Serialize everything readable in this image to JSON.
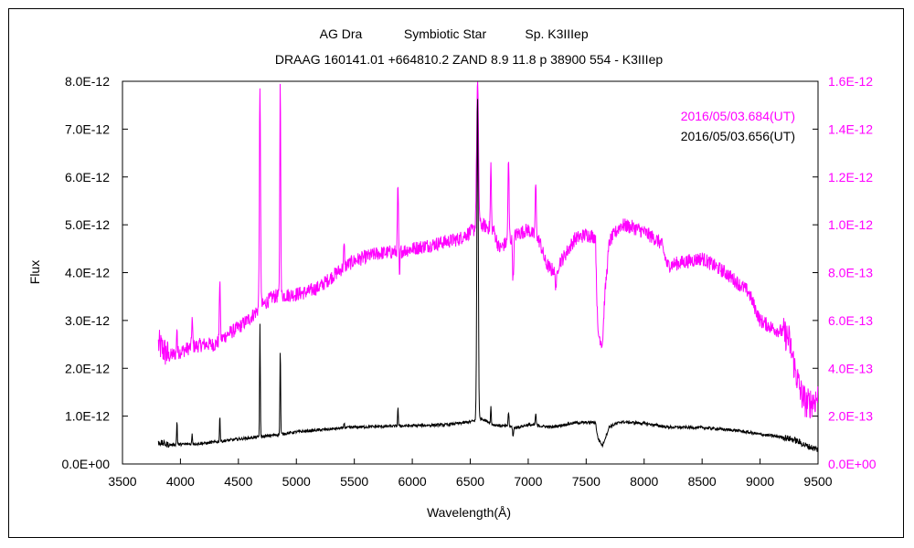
{
  "chart_data": {
    "type": "line",
    "title_line1_parts": [
      "AG Dra",
      "Symbiotic Star",
      "Sp. K3IIIep"
    ],
    "title_line2": "DRAAG 160141.01 +664810.2 ZAND 8.9 11.8 p 38900 554 - K3IIIep",
    "xlabel": "Wavelength(Å)",
    "ylabel": "Flux",
    "xlim": [
      3500,
      9500
    ],
    "ylim_left": [
      0,
      8e-12
    ],
    "ylim_right": [
      0,
      1.6e-12
    ],
    "x_ticks": [
      "3500",
      "4000",
      "4500",
      "5000",
      "5500",
      "6000",
      "6500",
      "7000",
      "7500",
      "8000",
      "8500",
      "9000",
      "9500"
    ],
    "y_left_ticks": [
      "0.0E+00",
      "1.0E-12",
      "2.0E-12",
      "3.0E-12",
      "4.0E-12",
      "5.0E-12",
      "6.0E-12",
      "7.0E-12",
      "8.0E-12"
    ],
    "y_right_ticks": [
      "0.0E+00",
      "2.0E-13",
      "4.0E-13",
      "6.0E-13",
      "8.0E-13",
      "1.0E-12",
      "1.2E-12",
      "1.4E-12",
      "1.6E-12"
    ],
    "grid": false,
    "legend_position": "top-right",
    "series": [
      {
        "name": "2016/05/03.684(UT)",
        "axis": "right",
        "color": "#ff00ff",
        "noise": 0.05,
        "points": [
          [
            3810,
            0.5
          ],
          [
            3900,
            0.45
          ],
          [
            4000,
            0.47
          ],
          [
            4100,
            0.49
          ],
          [
            4200,
            0.5
          ],
          [
            4300,
            0.5
          ],
          [
            4400,
            0.54
          ],
          [
            4500,
            0.57
          ],
          [
            4600,
            0.61
          ],
          [
            4700,
            0.66
          ],
          [
            4800,
            0.7
          ],
          [
            5000,
            0.71
          ],
          [
            5100,
            0.72
          ],
          [
            5200,
            0.74
          ],
          [
            5400,
            0.82
          ],
          [
            5500,
            0.85
          ],
          [
            5700,
            0.88
          ],
          [
            5900,
            0.89
          ],
          [
            6000,
            0.9
          ],
          [
            6200,
            0.92
          ],
          [
            6400,
            0.94
          ],
          [
            6500,
            0.97
          ],
          [
            6600,
            1.0
          ],
          [
            6700,
            0.98
          ],
          [
            6750,
            0.9
          ],
          [
            6850,
            0.94
          ],
          [
            6900,
            0.96
          ],
          [
            7000,
            0.98
          ],
          [
            7100,
            0.93
          ],
          [
            7150,
            0.84
          ],
          [
            7200,
            0.81
          ],
          [
            7300,
            0.86
          ],
          [
            7400,
            0.94
          ],
          [
            7500,
            0.96
          ],
          [
            7580,
            0.95
          ],
          [
            7600,
            0.55
          ],
          [
            7640,
            0.5
          ],
          [
            7660,
            0.7
          ],
          [
            7700,
            0.93
          ],
          [
            7800,
            1.0
          ],
          [
            7900,
            0.99
          ],
          [
            8000,
            0.97
          ],
          [
            8100,
            0.94
          ],
          [
            8150,
            0.92
          ],
          [
            8200,
            0.83
          ],
          [
            8300,
            0.84
          ],
          [
            8400,
            0.85
          ],
          [
            8500,
            0.86
          ],
          [
            8700,
            0.8
          ],
          [
            8800,
            0.76
          ],
          [
            8900,
            0.72
          ],
          [
            9000,
            0.6
          ],
          [
            9100,
            0.57
          ],
          [
            9200,
            0.55
          ],
          [
            9250,
            0.52
          ],
          [
            9300,
            0.4
          ],
          [
            9350,
            0.3
          ],
          [
            9400,
            0.25
          ],
          [
            9450,
            0.26
          ],
          [
            9500,
            0.28
          ]
        ],
        "lines": [
          [
            3970,
            0.12,
            3
          ],
          [
            4101,
            0.12,
            4
          ],
          [
            4340,
            0.27,
            4
          ],
          [
            4686,
            0.9,
            5
          ],
          [
            4861,
            0.9,
            4
          ],
          [
            5412,
            0.09,
            4
          ],
          [
            5876,
            0.28,
            4
          ],
          [
            5890,
            -0.12,
            3
          ],
          [
            6563,
            0.6,
            8
          ],
          [
            6678,
            0.27,
            4
          ],
          [
            6830,
            0.33,
            5
          ],
          [
            6870,
            -0.18,
            5
          ],
          [
            7065,
            0.22,
            5
          ],
          [
            7240,
            -0.08,
            10
          ]
        ]
      },
      {
        "name": "2016/05/03.656(UT)",
        "axis": "left",
        "color": "#000000",
        "noise": 5e-14,
        "points": [
          [
            3810,
            4.5e-13
          ],
          [
            3900,
            4e-13
          ],
          [
            4000,
            4.1e-13
          ],
          [
            4200,
            4.3e-13
          ],
          [
            4500,
            5.2e-13
          ],
          [
            4800,
            6e-13
          ],
          [
            5000,
            6.7e-13
          ],
          [
            5200,
            7.1e-13
          ],
          [
            5500,
            7.7e-13
          ],
          [
            6000,
            8e-13
          ],
          [
            6300,
            8.2e-13
          ],
          [
            6500,
            8.8e-13
          ],
          [
            6600,
            9.5e-13
          ],
          [
            6700,
            8.2e-13
          ],
          [
            6900,
            7.6e-13
          ],
          [
            7000,
            8.2e-13
          ],
          [
            7200,
            7.7e-13
          ],
          [
            7400,
            8.6e-13
          ],
          [
            7580,
            8.7e-13
          ],
          [
            7600,
            5.5e-13
          ],
          [
            7640,
            3.8e-13
          ],
          [
            7700,
            7.8e-13
          ],
          [
            7800,
            8.8e-13
          ],
          [
            8000,
            8.5e-13
          ],
          [
            8200,
            7.7e-13
          ],
          [
            8500,
            7.6e-13
          ],
          [
            8800,
            7e-13
          ],
          [
            9000,
            6.2e-13
          ],
          [
            9200,
            5.6e-13
          ],
          [
            9300,
            5e-13
          ],
          [
            9400,
            3.8e-13
          ],
          [
            9500,
            3e-13
          ]
        ],
        "lines": [
          [
            3970,
            5e-13,
            3
          ],
          [
            4101,
            2e-13,
            3
          ],
          [
            4340,
            5.5e-13,
            3
          ],
          [
            4686,
            2.35e-12,
            3
          ],
          [
            4861,
            1.8e-12,
            3
          ],
          [
            5412,
            1.2e-13,
            3
          ],
          [
            5876,
            4e-13,
            3
          ],
          [
            6563,
            6.8e-12,
            6
          ],
          [
            6678,
            3.5e-13,
            3
          ],
          [
            6830,
            3e-13,
            4
          ],
          [
            6870,
            -2e-13,
            4
          ],
          [
            7065,
            2.5e-13,
            4
          ]
        ]
      }
    ]
  }
}
